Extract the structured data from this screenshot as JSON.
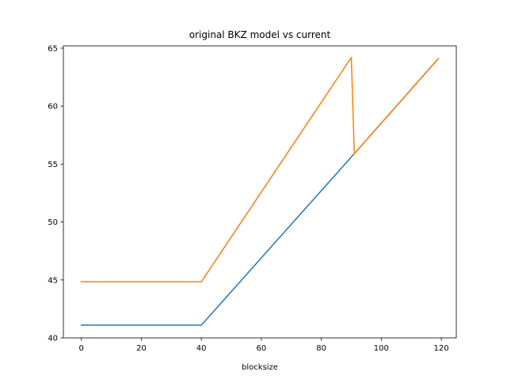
{
  "chart_data": {
    "type": "line",
    "title": "original BKZ model vs current",
    "xlabel": "blocksize",
    "ylabel": "",
    "xlim": [
      -6,
      125
    ],
    "ylim": [
      40,
      65.2
    ],
    "xticks": [
      0,
      20,
      40,
      60,
      80,
      100,
      120
    ],
    "yticks": [
      40,
      45,
      50,
      55,
      60,
      65
    ],
    "grid": false,
    "series": [
      {
        "color": "#1f77b4",
        "points": [
          [
            0,
            41.1
          ],
          [
            40,
            41.1
          ],
          [
            91,
            55.9
          ],
          [
            119,
            64.1
          ]
        ]
      },
      {
        "color": "#ff7f0e",
        "points": [
          [
            0,
            44.85
          ],
          [
            40,
            44.85
          ],
          [
            90,
            64.2
          ],
          [
            91,
            55.9
          ],
          [
            119,
            64.1
          ]
        ]
      }
    ]
  }
}
